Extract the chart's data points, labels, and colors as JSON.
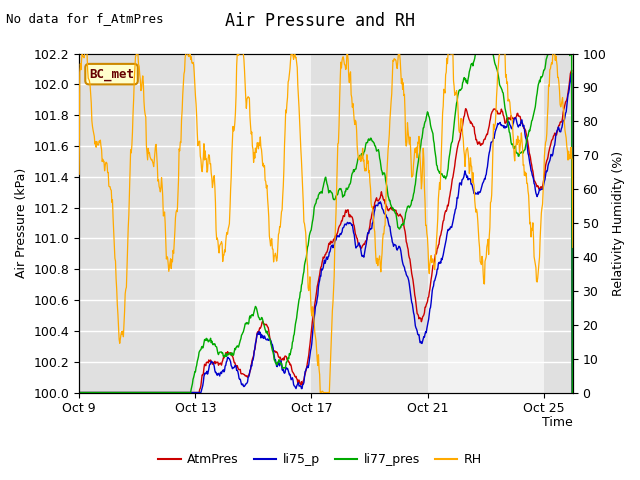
{
  "title": "Air Pressure and RH",
  "no_data_text": "No data for f_AtmPres",
  "site_label": "BC_met",
  "ylabel_left": "Air Pressure (kPa)",
  "ylabel_right": "Relativity Humidity (%)",
  "xlabel": "Time",
  "ylim_left": [
    100.0,
    102.2
  ],
  "ylim_right": [
    0,
    100
  ],
  "yticks_left": [
    100.0,
    100.2,
    100.4,
    100.6,
    100.8,
    101.0,
    101.2,
    101.4,
    101.6,
    101.8,
    102.0,
    102.2
  ],
  "yticks_right": [
    0,
    10,
    20,
    30,
    40,
    50,
    60,
    70,
    80,
    90,
    100
  ],
  "xtick_labels": [
    "Oct 9",
    "Oct 13",
    "Oct 17",
    "Oct 21",
    "Oct 25"
  ],
  "xtick_positions": [
    0,
    4,
    8,
    12,
    16
  ],
  "xlim": [
    0,
    17
  ],
  "colors": {
    "AtmPres": "#cc0000",
    "li75_p": "#0000cc",
    "li77_pres": "#00aa00",
    "RH": "#ffaa00"
  },
  "legend_labels": [
    "AtmPres",
    "li75_p",
    "li77_pres",
    "RH"
  ],
  "plot_bg_color": "#ffffff",
  "band_dark_color": "#e0e0e0",
  "band_light_color": "#f2f2f2",
  "grid_color": "#d8d8d8",
  "title_fontsize": 12,
  "label_fontsize": 9,
  "tick_fontsize": 9,
  "site_box_facecolor": "#ffffcc",
  "site_box_edgecolor": "#cc8800",
  "site_text_color": "#660000",
  "no_data_fontsize": 9
}
